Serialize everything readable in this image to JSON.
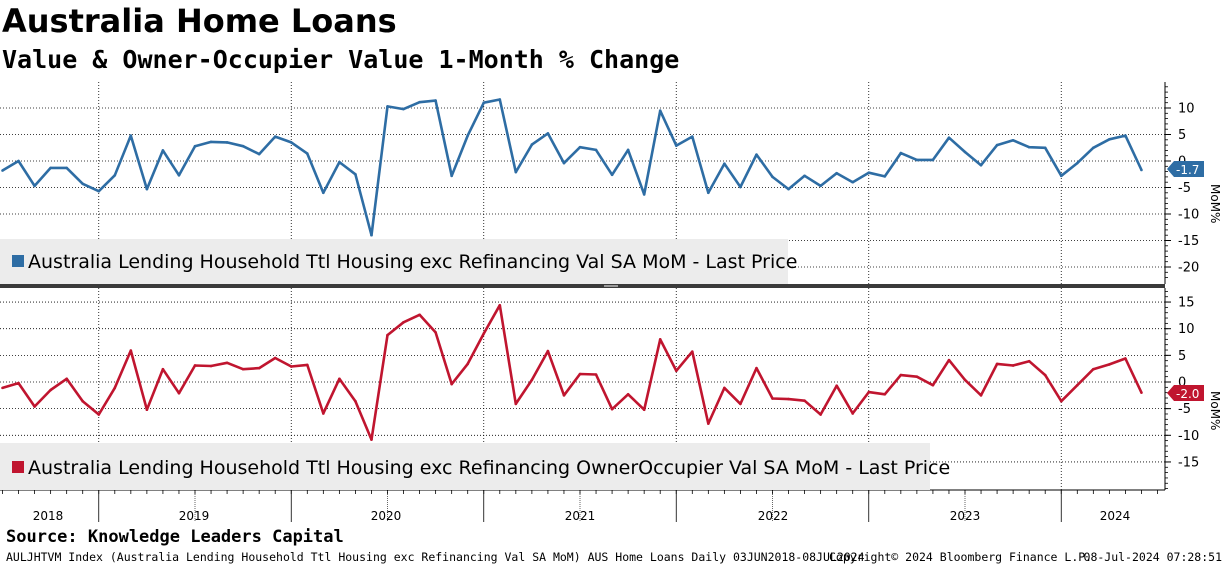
{
  "header": {
    "title": "Australia Home Loans",
    "subtitle": "Value & Owner-Occupier Value 1-Month % Change"
  },
  "footer": {
    "source": "Source: Knowledge Leaders Capital",
    "ticker_line": "AULJHTVM Index (Australia Lending Household Ttl Housing exc Refinancing Val SA MoM) AUS Home Loans  Daily 03JUN2018-08JUL2024",
    "copyright": "Copyright© 2024 Bloomberg Finance L.P.",
    "timestamp": "08-Jul-2024 07:28:51"
  },
  "colors": {
    "series_top": "#2e6da4",
    "series_bottom": "#c0152f",
    "label_top": "#2e6da4",
    "label_bottom": "#c0152f"
  },
  "chart_data": [
    {
      "type": "line",
      "panel": "top",
      "title": "Australia Lending Household Ttl Housing exc Refinancing Val SA MoM",
      "legend": "Australia Lending Household Ttl Housing exc Refinancing Val SA MoM - Last Price",
      "ylabel": "MoM%",
      "ylim": [
        -22,
        15
      ],
      "yticks": [
        10,
        5,
        0,
        -5,
        -10,
        -15,
        -20
      ],
      "last_value_label": "-1.7",
      "x_start": "2018-06",
      "x_end": "2024-06",
      "series": [
        {
          "name": "Value MoM %",
          "values": [
            -1.8,
            0,
            -4.7,
            -1.3,
            -1.3,
            -4.3,
            -5.7,
            -2.7,
            4.8,
            -5.3,
            2,
            -2.7,
            2.8,
            3.6,
            3.5,
            2.8,
            1.3,
            4.6,
            3.5,
            1.4,
            -6,
            -0.2,
            -2.5,
            -14,
            10.3,
            9.8,
            11.1,
            11.4,
            -2.8,
            4.8,
            11,
            11.6,
            -2.1,
            3.1,
            5.2,
            -0.4,
            2.6,
            2.1,
            -2.6,
            2.1,
            -6.3,
            9.5,
            2.9,
            4.6,
            -6,
            -0.5,
            -4.9,
            1.2,
            -3,
            -5.3,
            -2.8,
            -4.7,
            -2.3,
            -4,
            -2.2,
            -2.9,
            1.5,
            0.2,
            0.2,
            4.4,
            1.7,
            -0.8,
            3,
            3.9,
            2.6,
            2.5,
            -2.8,
            -0.4,
            2.5,
            4.1,
            4.8,
            -1.7
          ]
        }
      ]
    },
    {
      "type": "line",
      "panel": "bottom",
      "title": "Australia Lending Household Ttl Housing exc Refinancing OwnerOccupier Val SA MoM",
      "legend": "Australia Lending Household Ttl Housing exc Refinancing OwnerOccupier Val SA MoM - Last Price",
      "ylabel": "MoM%",
      "ylim": [
        -20,
        17
      ],
      "yticks": [
        15,
        10,
        5,
        0,
        -5,
        -10,
        -15
      ],
      "last_value_label": "-2.0",
      "x_start": "2018-06",
      "x_end": "2024-06",
      "series": [
        {
          "name": "Owner-Occupier Value MoM %",
          "values": [
            -1.1,
            -0.2,
            -4.6,
            -1.5,
            0.6,
            -3.6,
            -6.1,
            -1.1,
            5.9,
            -5.2,
            2.4,
            -2.1,
            3.1,
            3,
            3.6,
            2.4,
            2.6,
            4.5,
            2.9,
            3.2,
            -5.9,
            0.6,
            -3.6,
            -10.8,
            8.8,
            11.2,
            12.6,
            9.3,
            -0.4,
            3.4,
            9.1,
            14.4,
            -4.1,
            0.4,
            5.8,
            -2.5,
            1.5,
            1.4,
            -5.1,
            -2.3,
            -5.2,
            8,
            2.1,
            5.7,
            -7.8,
            -1.1,
            -4.1,
            2.6,
            -3.1,
            -3.2,
            -3.5,
            -6.1,
            -0.7,
            -5.9,
            -1.9,
            -2.3,
            1.3,
            1,
            -0.6,
            4.1,
            0.4,
            -2.5,
            3.4,
            3.1,
            3.9,
            1.3,
            -3.6,
            -0.6,
            2.4,
            3.3,
            4.4,
            -2
          ]
        }
      ]
    }
  ],
  "x_axis": {
    "year_labels": [
      "2018",
      "2019",
      "2020",
      "2021",
      "2022",
      "2023",
      "2024"
    ]
  }
}
